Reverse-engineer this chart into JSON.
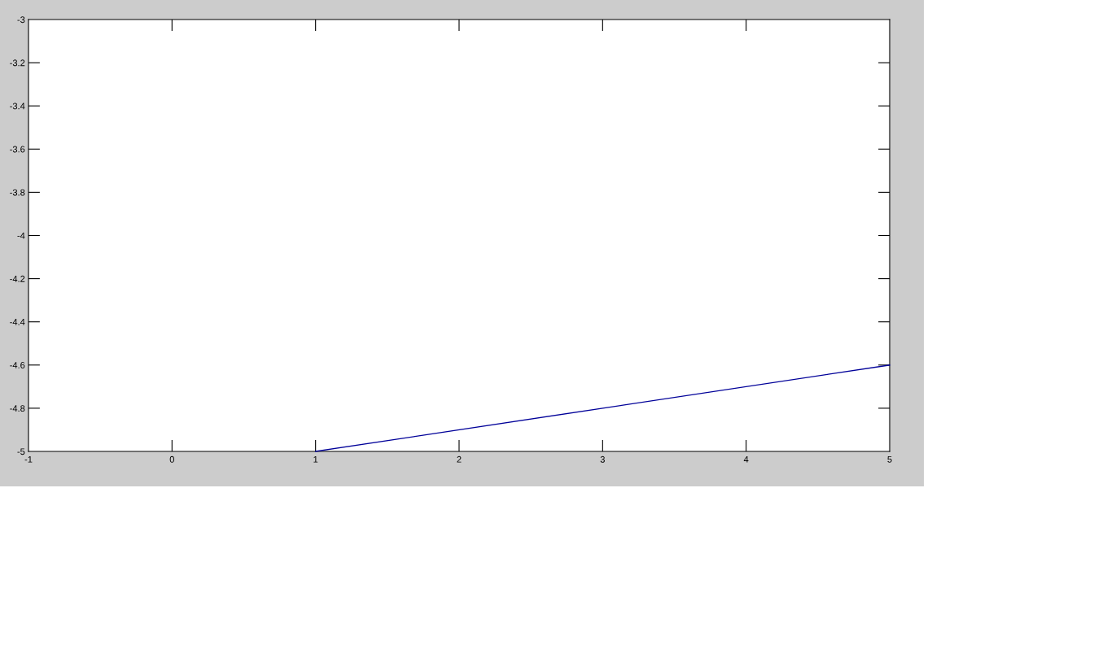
{
  "chart_data": {
    "type": "line",
    "x": [
      1,
      5
    ],
    "series": [
      {
        "color": "#000099",
        "values": [
          -5,
          -4.6
        ]
      }
    ],
    "xlim": [
      -1,
      5
    ],
    "ylim": [
      -5,
      -3
    ],
    "xticks": [
      -1,
      0,
      1,
      2,
      3,
      4,
      5
    ],
    "yticks": [
      -5,
      -4.8,
      -4.6,
      -4.4,
      -4.2,
      -4,
      -3.8,
      -3.6,
      -3.4,
      -3.2,
      -3
    ],
    "marker": "none",
    "line_style": "solid"
  }
}
